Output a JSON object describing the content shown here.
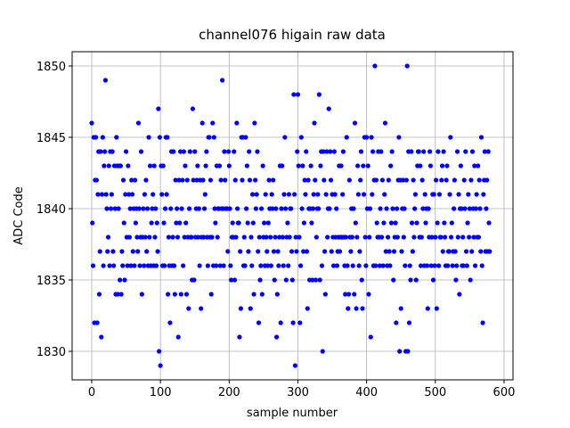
{
  "chart_data": {
    "type": "scatter",
    "title": "channel076 higain raw data",
    "x_label": "sample number",
    "y_label": "ADC Code",
    "color": "#0000ff",
    "grid": true,
    "xlim": [
      -28.5,
      613
    ],
    "xticks": [
      0,
      100,
      200,
      300,
      400,
      500,
      600
    ],
    "ylim": [
      1828,
      1851
    ],
    "yticks": [
      1830,
      1835,
      1840,
      1845,
      1850
    ],
    "values": [
      1846,
      1839,
      1836,
      1845,
      1832,
      1842,
      1845,
      1842,
      1832,
      1841,
      1844,
      1834,
      1837,
      1844,
      1831,
      1841,
      1845,
      1836,
      1843,
      1844,
      1849,
      1841,
      1840,
      1837,
      1838,
      1843,
      1836,
      1844,
      1840,
      1841,
      1844,
      1837,
      1836,
      1843,
      1840,
      1834,
      1845,
      1843,
      1834,
      1840,
      1843,
      1835,
      1843,
      1834,
      1837,
      1836,
      1842,
      1839,
      1835,
      1841,
      1844,
      1838,
      1836,
      1843,
      1841,
      1838,
      1840,
      1836,
      1842,
      1841,
      1837,
      1840,
      1836,
      1842,
      1839,
      1840,
      1838,
      1837,
      1846,
      1840,
      1836,
      1838,
      1844,
      1834,
      1838,
      1840,
      1836,
      1841,
      1838,
      1842,
      1837,
      1840,
      1836,
      1845,
      1838,
      1843,
      1836,
      1839,
      1840,
      1841,
      1836,
      1843,
      1838,
      1840,
      1836,
      1839,
      1837,
      1847,
      1830,
      1845,
      1829,
      1843,
      1841,
      1836,
      1843,
      1839,
      1836,
      1840,
      1845,
      1841,
      1845,
      1834,
      1838,
      1836,
      1832,
      1840,
      1844,
      1836,
      1838,
      1844,
      1836,
      1834,
      1842,
      1839,
      1840,
      1838,
      1831,
      1842,
      1839,
      1844,
      1834,
      1840,
      1842,
      1836,
      1844,
      1838,
      1843,
      1839,
      1834,
      1842,
      1838,
      1833,
      1840,
      1844,
      1838,
      1838,
      1835,
      1847,
      1842,
      1835,
      1844,
      1838,
      1840,
      1842,
      1843,
      1838,
      1840,
      1836,
      1842,
      1833,
      1838,
      1846,
      1842,
      1838,
      1840,
      1841,
      1843,
      1844,
      1838,
      1836,
      1845,
      1845,
      1838,
      1842,
      1834,
      1838,
      1846,
      1836,
      1845,
      1840,
      1839,
      1836,
      1843,
      1838,
      1840,
      1840,
      1843,
      1836,
      1842,
      1840,
      1849,
      1840,
      1836,
      1844,
      1842,
      1840,
      1840,
      1840,
      1837,
      1844,
      1843,
      1840,
      1836,
      1835,
      1838,
      1839,
      1838,
      1844,
      1835,
      1842,
      1838,
      1846,
      1840,
      1839,
      1839,
      1831,
      1837,
      1833,
      1845,
      1842,
      1845,
      1836,
      1838,
      1836,
      1845,
      1840,
      1843,
      1839,
      1837,
      1844,
      1842,
      1833,
      1838,
      1836,
      1841,
      1839,
      1834,
      1846,
      1842,
      1840,
      1841,
      1844,
      1837,
      1832,
      1838,
      1835,
      1836,
      1840,
      1834,
      1843,
      1838,
      1839,
      1836,
      1841,
      1838,
      1837,
      1836,
      1839,
      1842,
      1840,
      1838,
      1836,
      1841,
      1840,
      1842,
      1837,
      1835,
      1838,
      1840,
      1831,
      1834,
      1837,
      1836,
      1838,
      1843,
      1832,
      1840,
      1843,
      1838,
      1836,
      1841,
      1845,
      1840,
      1835,
      1838,
      1839,
      1836,
      1841,
      1838,
      1840,
      1840,
      1837,
      1835,
      1832,
      1848,
      1841,
      1829,
      1838,
      1837,
      1844,
      1848,
      1843,
      1838,
      1832,
      1836,
      1845,
      1840,
      1843,
      1837,
      1839,
      1842,
      1841,
      1844,
      1837,
      1833,
      1842,
      1840,
      1835,
      1840,
      1843,
      1839,
      1835,
      1840,
      1841,
      1846,
      1842,
      1835,
      1838,
      1840,
      1841,
      1840,
      1848,
      1835,
      1843,
      1844,
      1836,
      1830,
      1844,
      1842,
      1837,
      1834,
      1841,
      1844,
      1838,
      1840,
      1847,
      1840,
      1844,
      1842,
      1837,
      1841,
      1838,
      1836,
      1844,
      1841,
      1838,
      1840,
      1836,
      1837,
      1838,
      1843,
      1837,
      1838,
      1843,
      1838,
      1841,
      1844,
      1838,
      1836,
      1834,
      1838,
      1845,
      1836,
      1833,
      1834,
      1842,
      1838,
      1837,
      1840,
      1838,
      1836,
      1840,
      1834,
      1846,
      1839,
      1833,
      1838,
      1843,
      1841,
      1836,
      1837,
      1842,
      1844,
      1835,
      1833,
      1843,
      1841,
      1845,
      1838,
      1836,
      1845,
      1840,
      1843,
      1834,
      1838,
      1840,
      1831,
      1845,
      1841,
      1844,
      1836,
      1842,
      1850,
      1836,
      1842,
      1839,
      1838,
      1844,
      1838,
      1836,
      1840,
      1844,
      1838,
      1842,
      1836,
      1839,
      1841,
      1846,
      1837,
      1840,
      1836,
      1838,
      1842,
      1837,
      1836,
      1843,
      1839,
      1844,
      1840,
      1835,
      1837,
      1838,
      1839,
      1832,
      1840,
      1838,
      1842,
      1845,
      1830,
      1842,
      1833,
      1837,
      1840,
      1842,
      1838,
      1840,
      1836,
      1830,
      1842,
      1850,
      1830,
      1844,
      1832,
      1836,
      1835,
      1844,
      1839,
      1837,
      1842,
      1838,
      1840,
      1841,
      1835,
      1839,
      1843,
      1844,
      1844,
      1838,
      1843,
      1836,
      1838,
      1842,
      1840,
      1844,
      1836,
      1841,
      1839,
      1840,
      1836,
      1833,
      1840,
      1838,
      1844,
      1843,
      1836,
      1838,
      1841,
      1835,
      1841,
      1836,
      1838,
      1842,
      1833,
      1839,
      1844,
      1836,
      1841,
      1838,
      1838,
      1842,
      1843,
      1837,
      1844,
      1839,
      1838,
      1836,
      1842,
      1843,
      1836,
      1837,
      1837,
      1841,
      1845,
      1838,
      1839,
      1836,
      1837,
      1840,
      1842,
      1837,
      1835,
      1836,
      1844,
      1838,
      1841,
      1834,
      1840,
      1843,
      1840,
      1836,
      1838,
      1836,
      1842,
      1840,
      1844,
      1837,
      1836,
      1839,
      1841,
      1838,
      1840,
      1835,
      1842,
      1837,
      1844,
      1840,
      1838,
      1843,
      1836,
      1840,
      1841,
      1838,
      1843,
      1838,
      1842,
      1840,
      1837,
      1845,
      1836,
      1832,
      1841,
      1842,
      1844,
      1837,
      1840,
      1842,
      1837,
      1844,
      1839,
      1837
    ]
  }
}
